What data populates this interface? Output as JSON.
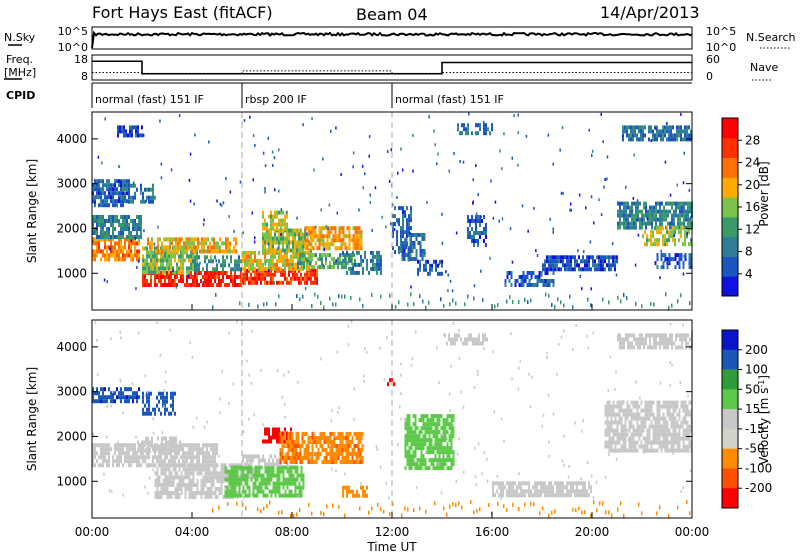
{
  "header": {
    "station": "Fort Hays East (fitACF)",
    "beam": "Beam 04",
    "date": "14/Apr/2013"
  },
  "panels": {
    "nsky_label": "N.Sky",
    "nsearch_label": "N.Search",
    "freq_label_1": "Freq.",
    "freq_label_2": "[MHz]",
    "nave_label": "Nave",
    "cpid_label": "CPID",
    "nsky_ticks": [
      "10^5",
      "10^0"
    ],
    "nsearch_ticks": [
      "10^5",
      "10^0"
    ],
    "freq_ticks": [
      "18",
      "8"
    ],
    "nave_ticks": [
      "60",
      "0"
    ]
  },
  "cpid": {
    "segments": [
      {
        "label": "normal (fast) 151 IF",
        "start_hour": 0,
        "end_hour": 6
      },
      {
        "label": "rbsp 200 IF",
        "start_hour": 6,
        "end_hour": 12
      },
      {
        "label": "normal (fast) 151 IF",
        "start_hour": 12,
        "end_hour": 24
      }
    ]
  },
  "frequency": {
    "ylim": [
      8,
      18
    ],
    "steps": [
      {
        "start_hour": 0,
        "end_hour": 2,
        "value": 15.5
      },
      {
        "start_hour": 2,
        "end_hour": 14,
        "value": 10.5
      },
      {
        "start_hour": 14,
        "end_hour": 24,
        "value": 15.0
      }
    ]
  },
  "nave": {
    "ylim": [
      0,
      60
    ],
    "steps": [
      {
        "start_hour": 0,
        "end_hour": 2,
        "value": 18
      },
      {
        "start_hour": 2,
        "end_hour": 6,
        "value": 16
      },
      {
        "start_hour": 6,
        "end_hour": 12,
        "value": 22
      },
      {
        "start_hour": 12,
        "end_hour": 14,
        "value": 16
      },
      {
        "start_hour": 14,
        "end_hour": 24,
        "value": 18
      }
    ]
  },
  "colors": {
    "power_scale": [
      "#1010e0",
      "#1a55c0",
      "#2e7f96",
      "#3b9a6a",
      "#7ac24a",
      "#ffaa00",
      "#ff7000",
      "#ff3000",
      "#ff0000"
    ],
    "velocity_scale": [
      "#ff0000",
      "#ff5000",
      "#ff8c00",
      "#d2d2c8",
      "#c8c8c8",
      "#5ec84a",
      "#2e9c3a",
      "#1a58b8",
      "#0a14c8"
    ],
    "velocity_grey": "#c8c8c8"
  },
  "chart_data": [
    {
      "type": "heatmap",
      "name": "Power",
      "xlabel": "",
      "ylabel": "Slant Range [km]",
      "xlim": [
        0,
        24
      ],
      "ylim": [
        180,
        4600
      ],
      "yticks": [
        "1000",
        "2000",
        "3000",
        "4000"
      ],
      "colorbar_label": "Power [dB]",
      "colorbar_ticks": [
        "4",
        "8",
        "12",
        "16",
        "20",
        "24",
        "28"
      ],
      "regions": [
        {
          "t0": 0.0,
          "t1": 1.9,
          "r0": 1350,
          "r1": 1800,
          "value": 20
        },
        {
          "t0": 0.0,
          "t1": 2.0,
          "r0": 1850,
          "r1": 2300,
          "value": 9
        },
        {
          "t0": 0.0,
          "t1": 1.5,
          "r0": 2500,
          "r1": 3100,
          "value": 6
        },
        {
          "t0": 1.2,
          "t1": 2.5,
          "r0": 2600,
          "r1": 3000,
          "value": 8
        },
        {
          "t0": 1.0,
          "t1": 2.0,
          "r0": 4100,
          "r1": 4300,
          "value": 5
        },
        {
          "t0": 2.0,
          "t1": 6.0,
          "r0": 700,
          "r1": 1050,
          "value": 26
        },
        {
          "t0": 2.0,
          "t1": 4.2,
          "r0": 1050,
          "r1": 1600,
          "value": 14
        },
        {
          "t0": 2.2,
          "t1": 5.8,
          "r0": 1500,
          "r1": 1800,
          "value": 18
        },
        {
          "t0": 4.0,
          "t1": 6.0,
          "r0": 1050,
          "r1": 1400,
          "value": 10
        },
        {
          "t0": 6.0,
          "t1": 9.0,
          "r0": 750,
          "r1": 1100,
          "value": 25
        },
        {
          "t0": 6.0,
          "t1": 8.8,
          "r0": 1100,
          "r1": 1500,
          "value": 17
        },
        {
          "t0": 8.2,
          "t1": 10.5,
          "r0": 1150,
          "r1": 1450,
          "value": 13
        },
        {
          "t0": 6.8,
          "t1": 8.8,
          "r0": 1500,
          "r1": 2000,
          "value": 15
        },
        {
          "t0": 6.8,
          "t1": 7.8,
          "r0": 2000,
          "r1": 2400,
          "value": 16
        },
        {
          "t0": 8.5,
          "t1": 10.8,
          "r0": 1600,
          "r1": 2050,
          "value": 19
        },
        {
          "t0": 10.0,
          "t1": 11.6,
          "r0": 1000,
          "r1": 1500,
          "value": 8
        },
        {
          "t0": 12.0,
          "t1": 12.8,
          "r0": 1500,
          "r1": 2500,
          "value": 6
        },
        {
          "t0": 12.3,
          "t1": 13.3,
          "r0": 1300,
          "r1": 1900,
          "value": 7
        },
        {
          "t0": 13.0,
          "t1": 14.0,
          "r0": 1000,
          "r1": 1300,
          "value": 5
        },
        {
          "t0": 14.6,
          "t1": 16.0,
          "r0": 4150,
          "r1": 4350,
          "value": 7
        },
        {
          "t0": 15.0,
          "t1": 15.8,
          "r0": 1600,
          "r1": 2300,
          "value": 6
        },
        {
          "t0": 16.5,
          "t1": 18.5,
          "r0": 750,
          "r1": 1050,
          "value": 6
        },
        {
          "t0": 18.0,
          "t1": 21.0,
          "r0": 1100,
          "r1": 1400,
          "value": 5
        },
        {
          "t0": 21.2,
          "t1": 24.0,
          "r0": 4000,
          "r1": 4300,
          "value": 8
        },
        {
          "t0": 21.0,
          "t1": 24.0,
          "r0": 2000,
          "r1": 2600,
          "value": 9
        },
        {
          "t0": 22.0,
          "t1": 24.0,
          "r0": 1650,
          "r1": 2050,
          "value": 16
        },
        {
          "t0": 22.5,
          "t1": 24.0,
          "r0": 1150,
          "r1": 1450,
          "value": 5
        }
      ]
    },
    {
      "type": "heatmap",
      "name": "Velocity",
      "xlabel": "Time UT",
      "ylabel": "Slant Range [km]",
      "xlim": [
        0,
        24
      ],
      "ylim": [
        180,
        4600
      ],
      "yticks": [
        "1000",
        "2000",
        "3000",
        "4000"
      ],
      "xticks": [
        "00:00",
        "04:00",
        "08:00",
        "12:00",
        "16:00",
        "20:00",
        "00:00"
      ],
      "colorbar_label": "Velocity [m s^-1]",
      "colorbar_ticks": [
        "200",
        "100",
        "50",
        "15",
        "-15",
        "-50",
        "-100",
        "-200"
      ],
      "regions": [
        {
          "t0": 0.0,
          "t1": 2.0,
          "r0": 2800,
          "r1": 3100,
          "value": 180
        },
        {
          "t0": 0.0,
          "t1": 5.0,
          "r0": 1400,
          "r1": 1850,
          "value": 0
        },
        {
          "t0": 1.8,
          "t1": 3.5,
          "r0": 1700,
          "r1": 2000,
          "value": 0
        },
        {
          "t0": 2.0,
          "t1": 3.3,
          "r0": 2500,
          "r1": 3000,
          "value": 150
        },
        {
          "t0": 2.5,
          "t1": 6.5,
          "r0": 1050,
          "r1": 1400,
          "value": 0
        },
        {
          "t0": 2.5,
          "t1": 5.8,
          "r0": 650,
          "r1": 1050,
          "value": 0
        },
        {
          "t0": 5.3,
          "t1": 8.5,
          "r0": 700,
          "r1": 1350,
          "value": 35
        },
        {
          "t0": 6.0,
          "t1": 7.8,
          "r0": 1350,
          "r1": 1600,
          "value": 0
        },
        {
          "t0": 6.8,
          "t1": 8.0,
          "r0": 1900,
          "r1": 2200,
          "value": -200
        },
        {
          "t0": 7.5,
          "t1": 10.8,
          "r0": 1400,
          "r1": 2100,
          "value": -45
        },
        {
          "t0": 10.0,
          "t1": 11.0,
          "r0": 700,
          "r1": 900,
          "value": -30
        },
        {
          "t0": 12.5,
          "t1": 14.5,
          "r0": 1300,
          "r1": 2500,
          "value": 22
        },
        {
          "t0": 14.0,
          "t1": 15.8,
          "r0": 4100,
          "r1": 4300,
          "value": 0
        },
        {
          "t0": 16.0,
          "t1": 20.0,
          "r0": 650,
          "r1": 1000,
          "value": 0
        },
        {
          "t0": 20.5,
          "t1": 24.0,
          "r0": 1700,
          "r1": 2800,
          "value": 0
        },
        {
          "t0": 21.0,
          "t1": 24.0,
          "r0": 4000,
          "r1": 4300,
          "value": 0
        },
        {
          "t0": 11.8,
          "t1": 12.2,
          "r0": 3150,
          "r1": 3300,
          "value": -200
        }
      ]
    }
  ]
}
